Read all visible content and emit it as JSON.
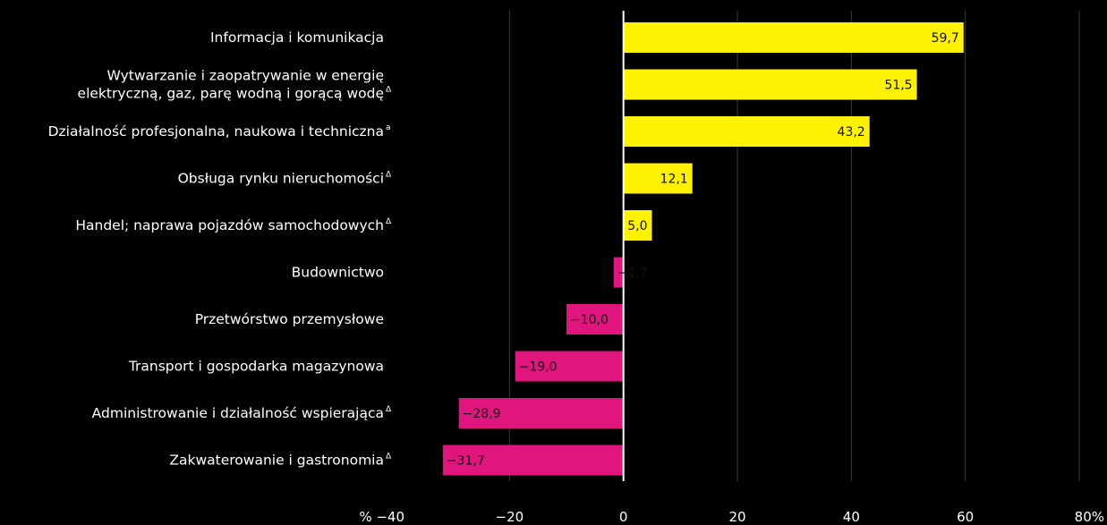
{
  "chart_data": {
    "type": "bar",
    "orientation": "horizontal",
    "xlim": [
      -40,
      80
    ],
    "ticks": [
      -40,
      -20,
      0,
      20,
      40,
      60,
      80
    ],
    "tick_labels": [
      "% −40",
      "−20",
      "0",
      "20",
      "40",
      "60",
      "80%"
    ],
    "grid": true,
    "colors": {
      "positive": "#fff200",
      "negative": "#e0157d",
      "background": "#000000"
    },
    "categories": [
      {
        "lines": [
          "Informacja i komunikacja"
        ],
        "mark": ""
      },
      {
        "lines": [
          "Wytwarzanie i zaopatrywanie w energię",
          "elektryczną, gaz, parę wodną i gorącą wodę"
        ],
        "mark": "Δ"
      },
      {
        "lines": [
          "Działalność profesjonalna, naukowa i techniczna"
        ],
        "mark": "a"
      },
      {
        "lines": [
          "Obsługa rynku nieruchomości"
        ],
        "mark": "Δ"
      },
      {
        "lines": [
          "Handel; naprawa pojazdów samochodowych"
        ],
        "mark": "Δ"
      },
      {
        "lines": [
          "Budownictwo"
        ],
        "mark": ""
      },
      {
        "lines": [
          "Przetwórstwo przemysłowe"
        ],
        "mark": ""
      },
      {
        "lines": [
          "Transport i gospodarka magazynowa"
        ],
        "mark": ""
      },
      {
        "lines": [
          "Administrowanie i działalność wspierająca"
        ],
        "mark": "Δ"
      },
      {
        "lines": [
          "Zakwaterowanie i gastronomia"
        ],
        "mark": "Δ"
      }
    ],
    "values": [
      59.7,
      51.5,
      43.2,
      12.1,
      5.0,
      -1.7,
      -10.0,
      -19.0,
      -28.9,
      -31.7
    ],
    "value_labels": [
      "59,7",
      "51,5",
      "43,2",
      "12,1",
      "5,0",
      "−1,7",
      "−10,0",
      "−19,0",
      "−28,9",
      "−31,7"
    ]
  }
}
